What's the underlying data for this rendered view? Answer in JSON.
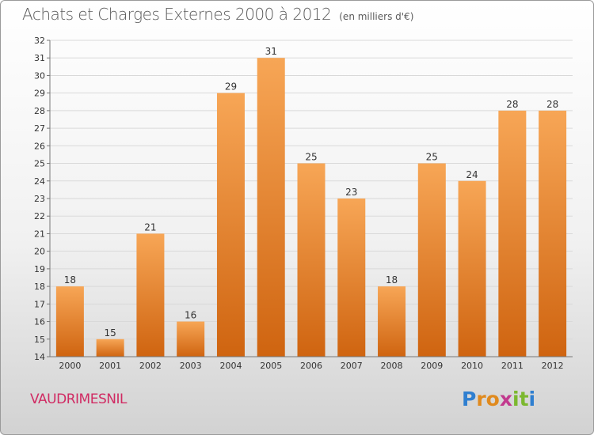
{
  "header": {
    "title": "Achats et Charges Externes 2000 à 2012",
    "unit": "(en milliers d'€)"
  },
  "commune": "VAUDRIMESNIL",
  "brand": {
    "letters": [
      {
        "ch": "P",
        "color": "#2f7fd0"
      },
      {
        "ch": "r",
        "color": "#e08a1e"
      },
      {
        "ch": "o",
        "color": "#e08a1e"
      },
      {
        "ch": "x",
        "color": "#c23a8e"
      },
      {
        "ch": "i",
        "color": "#7cb82f"
      },
      {
        "ch": "t",
        "color": "#7cb82f"
      },
      {
        "ch": "i",
        "color": "#2f7fd0"
      }
    ]
  },
  "colors": {
    "bar_light": "#f7a656",
    "bar_dark": "#cf6410",
    "grid": "#d9d9d9",
    "axis": "#777777",
    "text": "#333333"
  },
  "chart_data": {
    "type": "bar",
    "categories": [
      "2000",
      "2001",
      "2002",
      "2003",
      "2004",
      "2005",
      "2006",
      "2007",
      "2008",
      "2009",
      "2010",
      "2011",
      "2012"
    ],
    "values": [
      18,
      15,
      21,
      16,
      29,
      31,
      25,
      23,
      18,
      25,
      24,
      28,
      28
    ],
    "title": "Achats et Charges Externes 2000 à 2012",
    "subtitle": "(en milliers d'€)",
    "xlabel": "",
    "ylabel": "",
    "ylim": [
      14,
      32
    ],
    "yticks": [
      14,
      15,
      16,
      17,
      18,
      19,
      20,
      21,
      22,
      23,
      24,
      25,
      26,
      27,
      28,
      29,
      30,
      31,
      32
    ],
    "grid": true,
    "legend": "none"
  }
}
